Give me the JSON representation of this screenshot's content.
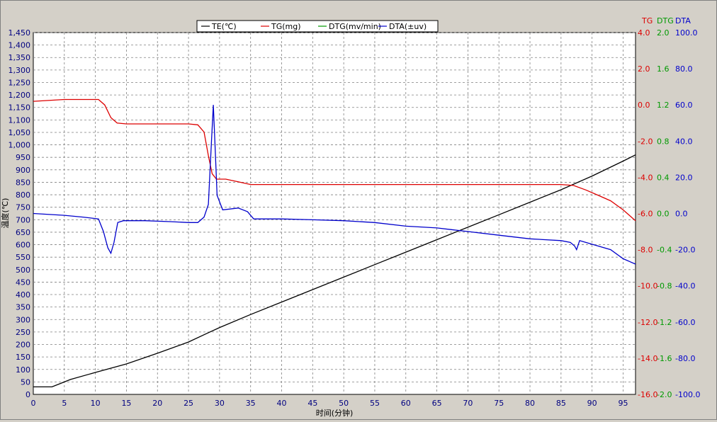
{
  "chart_data": {
    "type": "line",
    "xlabel": "时间(分钟)",
    "ylabel": "温度(℃)",
    "xlim": [
      0,
      97
    ],
    "ylim": [
      0,
      1450
    ],
    "x_ticks": [
      "0",
      "5",
      "10",
      "15",
      "20",
      "25",
      "30",
      "35",
      "40",
      "45",
      "50",
      "55",
      "60",
      "65",
      "70",
      "75",
      "80",
      "85",
      "90",
      "95"
    ],
    "y_ticks": [
      "0",
      "50",
      "100",
      "150",
      "200",
      "250",
      "300",
      "350",
      "400",
      "450",
      "500",
      "550",
      "600",
      "650",
      "700",
      "750",
      "800",
      "850",
      "900",
      "950",
      "1,000",
      "1,050",
      "1,100",
      "1,150",
      "1,200",
      "1,250",
      "1,300",
      "1,350",
      "1,400",
      "1,450"
    ],
    "grid": true,
    "legend_position": "top-center",
    "legend": [
      {
        "label": "TE(℃)",
        "color": "#000000"
      },
      {
        "label": "TG(mg)",
        "color": "#dd0000"
      },
      {
        "label": "DTG(mv/min)",
        "color": "#009900"
      },
      {
        "label": "DTA(±uv)",
        "color": "#0000cc"
      }
    ],
    "right_axes": [
      {
        "title": "TG",
        "color": "#dd0000",
        "range": [
          -16,
          4
        ],
        "ticks": [
          "4.0",
          "2.0",
          "0.0",
          "-2.0",
          "-4.0",
          "-6.0",
          "-8.0",
          "-10.0",
          "-12.0",
          "-14.0",
          "-16.0"
        ]
      },
      {
        "title": "DTG",
        "color": "#009900",
        "range": [
          -2,
          2
        ],
        "ticks": [
          "2.0",
          "1.6",
          "1.2",
          "0.8",
          "0.4",
          "0.0",
          "-0.4",
          "-0.8",
          "-1.2",
          "-1.6",
          "-2.0"
        ]
      },
      {
        "title": "DTA",
        "color": "#0000cc",
        "range": [
          -100,
          100
        ],
        "ticks": [
          "100.0",
          "80.0",
          "60.0",
          "40.0",
          "20.0",
          "0.0",
          "-20.0",
          "-40.0",
          "-60.0",
          "-80.0",
          "-100.0"
        ]
      }
    ],
    "series": [
      {
        "name": "TE(℃)",
        "axis": "left",
        "color": "#000000",
        "points": [
          [
            0,
            30
          ],
          [
            3,
            30
          ],
          [
            4,
            40
          ],
          [
            6,
            60
          ],
          [
            10,
            88
          ],
          [
            15,
            122
          ],
          [
            20,
            165
          ],
          [
            25,
            210
          ],
          [
            28,
            245
          ],
          [
            30,
            268
          ],
          [
            35,
            320
          ],
          [
            40,
            370
          ],
          [
            45,
            420
          ],
          [
            50,
            470
          ],
          [
            55,
            520
          ],
          [
            60,
            570
          ],
          [
            65,
            620
          ],
          [
            70,
            670
          ],
          [
            75,
            720
          ],
          [
            80,
            770
          ],
          [
            85,
            820
          ],
          [
            90,
            875
          ],
          [
            95,
            935
          ],
          [
            97,
            960
          ]
        ]
      },
      {
        "name": "TG(mg)",
        "axis": "TG",
        "color": "#dd0000",
        "points": [
          [
            0,
            0.2
          ],
          [
            5,
            0.3
          ],
          [
            9,
            0.3
          ],
          [
            10.5,
            0.3
          ],
          [
            11.5,
            0
          ],
          [
            12.5,
            -0.7
          ],
          [
            13.5,
            -1.0
          ],
          [
            15,
            -1.05
          ],
          [
            20,
            -1.05
          ],
          [
            25,
            -1.05
          ],
          [
            26.5,
            -1.1
          ],
          [
            27.5,
            -1.5
          ],
          [
            28.2,
            -2.8
          ],
          [
            28.8,
            -3.8
          ],
          [
            29.5,
            -4.1
          ],
          [
            31,
            -4.1
          ],
          [
            33,
            -4.25
          ],
          [
            35,
            -4.4
          ],
          [
            40,
            -4.4
          ],
          [
            45,
            -4.4
          ],
          [
            50,
            -4.4
          ],
          [
            55,
            -4.4
          ],
          [
            60,
            -4.4
          ],
          [
            65,
            -4.4
          ],
          [
            70,
            -4.4
          ],
          [
            75,
            -4.4
          ],
          [
            80,
            -4.4
          ],
          [
            85,
            -4.4
          ],
          [
            87,
            -4.45
          ],
          [
            89,
            -4.7
          ],
          [
            91,
            -5.0
          ],
          [
            93,
            -5.3
          ],
          [
            95,
            -5.8
          ],
          [
            97,
            -6.4
          ]
        ]
      },
      {
        "name": "DTG(mv/min)",
        "axis": "DTG",
        "color": "#009900",
        "points": []
      },
      {
        "name": "DTA(±uv)",
        "axis": "DTA",
        "color": "#0000cc",
        "points": [
          [
            0,
            0
          ],
          [
            5,
            -1
          ],
          [
            8,
            -2
          ],
          [
            10.5,
            -3
          ],
          [
            11.3,
            -10
          ],
          [
            12,
            -19
          ],
          [
            12.5,
            -22
          ],
          [
            13,
            -16
          ],
          [
            13.6,
            -5
          ],
          [
            14.5,
            -4
          ],
          [
            18,
            -4
          ],
          [
            22,
            -4.5
          ],
          [
            25,
            -5
          ],
          [
            26.5,
            -5
          ],
          [
            27.5,
            -2
          ],
          [
            28.2,
            5
          ],
          [
            28.7,
            40
          ],
          [
            29,
            60
          ],
          [
            29.3,
            35
          ],
          [
            29.6,
            10
          ],
          [
            30.5,
            2
          ],
          [
            33,
            3
          ],
          [
            34.5,
            1
          ],
          [
            35.5,
            -3
          ],
          [
            40,
            -3
          ],
          [
            45,
            -3.5
          ],
          [
            50,
            -4
          ],
          [
            55,
            -5
          ],
          [
            60,
            -7
          ],
          [
            65,
            -8
          ],
          [
            70,
            -10
          ],
          [
            75,
            -12
          ],
          [
            80,
            -14
          ],
          [
            85,
            -15
          ],
          [
            86.5,
            -16
          ],
          [
            87.2,
            -18
          ],
          [
            87.5,
            -20
          ],
          [
            88,
            -15
          ],
          [
            89,
            -16
          ],
          [
            91,
            -18
          ],
          [
            93,
            -20
          ],
          [
            95,
            -25
          ],
          [
            97,
            -28
          ]
        ]
      }
    ]
  }
}
